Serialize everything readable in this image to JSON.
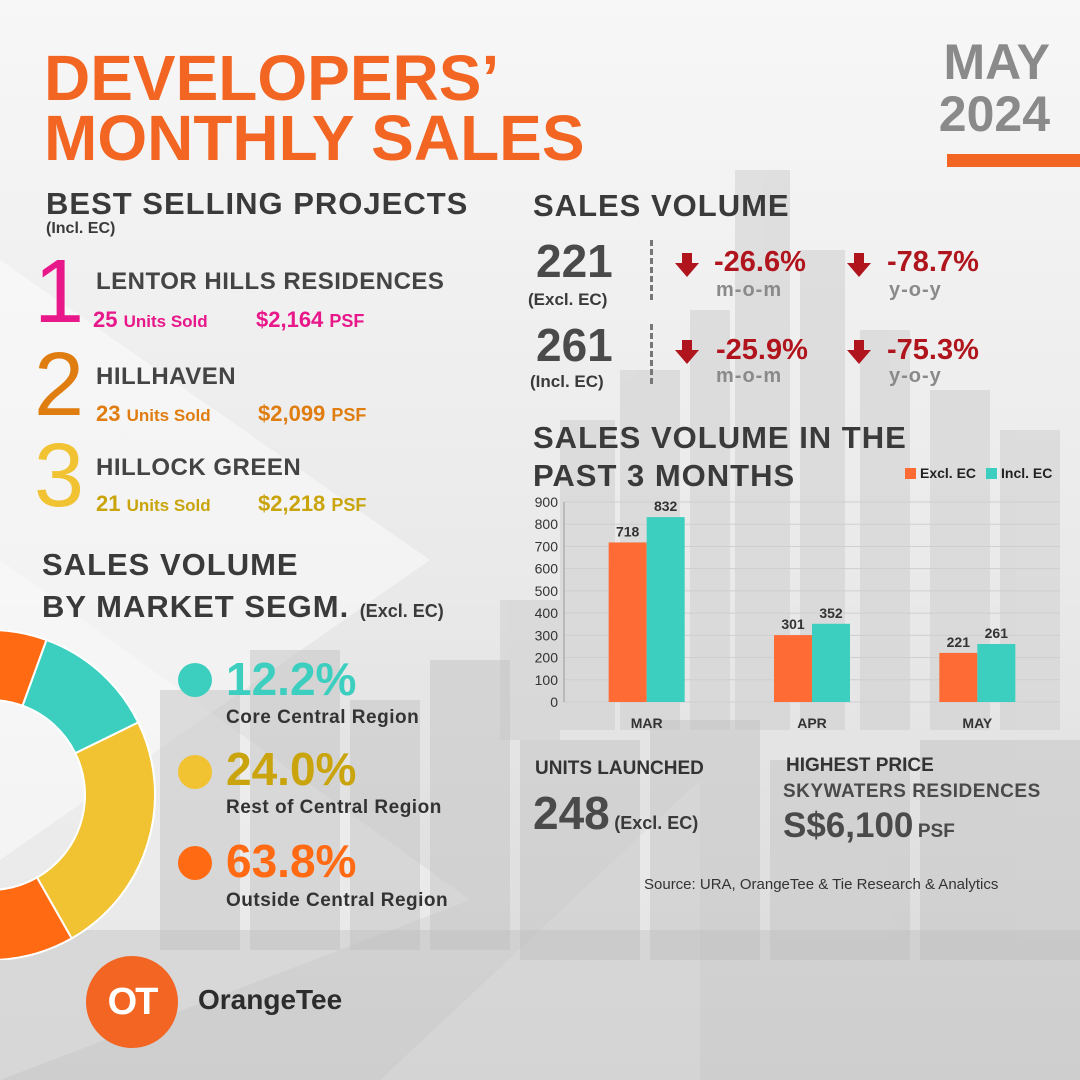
{
  "title": {
    "line1": "DEVELOPERS’",
    "line2": "MONTHLY SALES",
    "month": "MAY",
    "year": "2024"
  },
  "colors": {
    "orange": "#f26522",
    "pink": "#e8178a",
    "amber": "#e07d10",
    "gold": "#c9a40c",
    "teal": "#3ccfbf",
    "yellow": "#f1c232",
    "dark_orange": "#ff6a13",
    "red": "#b0151e"
  },
  "best_selling": {
    "heading": "BEST SELLING PROJECTS",
    "note": "(Incl. EC)",
    "projects": [
      {
        "rank": "1",
        "name": "LENTOR HILLS RESIDENCES",
        "units": "25",
        "units_label": "Units Sold",
        "price": "$2,164",
        "price_unit": "PSF"
      },
      {
        "rank": "2",
        "name": "HILLHAVEN",
        "units": "23",
        "units_label": "Units Sold",
        "price": "$2,099",
        "price_unit": "PSF"
      },
      {
        "rank": "3",
        "name": "HILLOCK GREEN",
        "units": "21",
        "units_label": "Units Sold",
        "price": "$2,218",
        "price_unit": "PSF"
      }
    ]
  },
  "sales_volume": {
    "heading": "SALES VOLUME",
    "rows": [
      {
        "value": "221",
        "caption": "(Excl. EC)",
        "mom": "-26.6%",
        "mom_label": "m-o-m",
        "yoy": "-78.7%",
        "yoy_label": "y-o-y"
      },
      {
        "value": "261",
        "caption": "(Incl. EC)",
        "mom": "-25.9%",
        "mom_label": "m-o-m",
        "yoy": "-75.3%",
        "yoy_label": "y-o-y"
      }
    ]
  },
  "market_segment": {
    "heading_line1": "SALES VOLUME",
    "heading_line2": "BY MARKET SEGM.",
    "note": "(Excl. EC)",
    "items": [
      {
        "pct": "12.2%",
        "label": "Core Central Region",
        "icon": "teal-dot-icon"
      },
      {
        "pct": "24.0%",
        "label": "Rest of Central Region",
        "icon": "yellow-dot-icon"
      },
      {
        "pct": "63.8%",
        "label": "Outside Central Region",
        "icon": "orange-dot-icon"
      }
    ]
  },
  "past3": {
    "heading_line1": "SALES VOLUME IN THE",
    "heading_line2": "PAST 3 MONTHS"
  },
  "units_launched": {
    "heading": "UNITS LAUNCHED",
    "value": "248",
    "note": "(Excl. EC)"
  },
  "highest_price": {
    "heading": "HIGHEST PRICE",
    "project": "SKYWATERS RESIDENCES",
    "price": "S$6,100",
    "unit": "PSF"
  },
  "source": "Source: URA, OrangeTee & Tie Research & Analytics",
  "brand": {
    "name": "OrangeTee",
    "logo_text": "OT"
  },
  "chart_data": [
    {
      "type": "bar",
      "categories": [
        "MAR",
        "APR",
        "MAY"
      ],
      "series": [
        {
          "name": "Excl. EC",
          "values": [
            718,
            301,
            221
          ]
        },
        {
          "name": "Incl. EC",
          "values": [
            832,
            352,
            261
          ]
        }
      ],
      "ylim": [
        0,
        900
      ],
      "yticks": [
        0,
        100,
        200,
        300,
        400,
        500,
        600,
        700,
        800,
        900
      ],
      "grid": true,
      "legend": "top-right"
    },
    {
      "type": "pie",
      "categories": [
        "Core Central Region",
        "Rest of Central Region",
        "Outside Central Region"
      ],
      "values": [
        12.2,
        24.0,
        63.8
      ]
    }
  ]
}
